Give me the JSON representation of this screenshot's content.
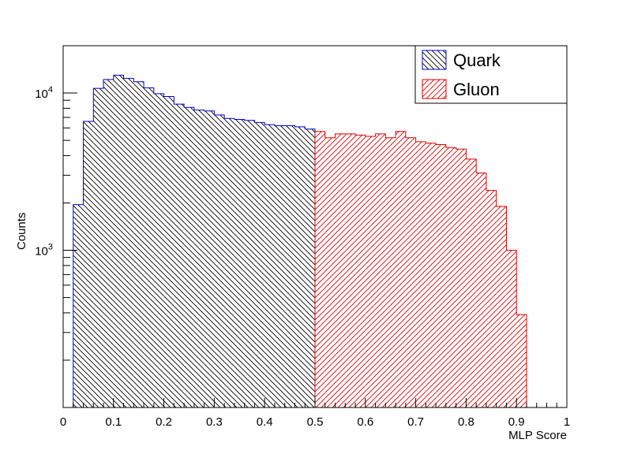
{
  "chart_data": {
    "type": "histogram",
    "xlabel": "MLP Score",
    "ylabel": "Counts",
    "xlim": [
      0,
      1
    ],
    "ylim": [
      100,
      20000
    ],
    "yscale": "log",
    "legend_position": "top-right",
    "x_tick_labels": [
      "0",
      "0.1",
      "0.2",
      "0.3",
      "0.4",
      "0.5",
      "0.6",
      "0.7",
      "0.8",
      "0.9",
      "1"
    ],
    "y_tick_labels": [
      {
        "base": "10",
        "exp": "3",
        "value": 1000
      },
      {
        "base": "10",
        "exp": "4",
        "value": 10000
      }
    ],
    "bin_width": 0.02,
    "series": [
      {
        "name": "Quark",
        "color": "#0000cc",
        "hatch": "backslash",
        "x_start": 0.02,
        "values": [
          1950,
          6600,
          10700,
          12200,
          13000,
          12400,
          11800,
          10800,
          9900,
          9500,
          8500,
          8100,
          7800,
          7700,
          7250,
          6900,
          6800,
          6700,
          6500,
          6300,
          6200,
          6200,
          6100,
          5900
        ]
      },
      {
        "name": "Gluon",
        "color": "#dd0000",
        "hatch": "slash",
        "x_start": 0.5,
        "values": [
          5700,
          5200,
          5500,
          5500,
          5400,
          5300,
          5500,
          5200,
          5700,
          5200,
          4900,
          4800,
          4700,
          4500,
          4400,
          3800,
          3100,
          2400,
          1900,
          1000,
          390
        ]
      }
    ]
  }
}
